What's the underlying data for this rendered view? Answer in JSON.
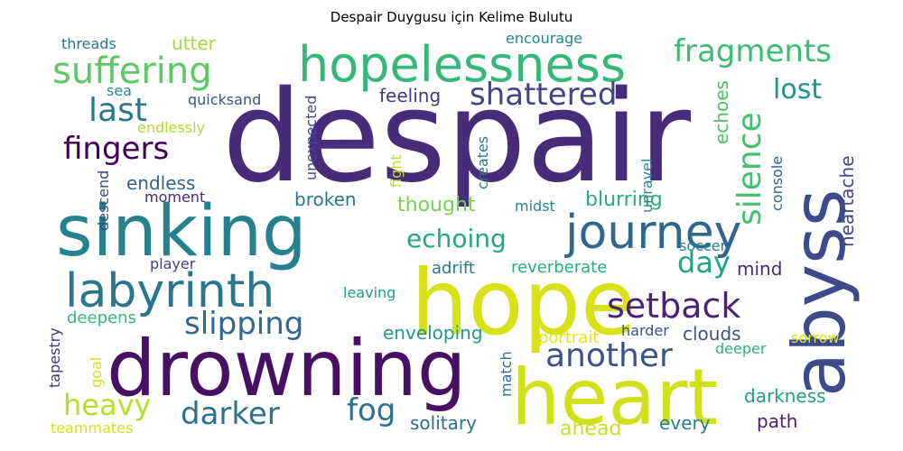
{
  "title": "Despair Duygusu için Kelime Bulutu",
  "words": [
    {
      "text": "despair",
      "color": "#472c7a"
    },
    {
      "text": "sinking",
      "color": "#26818e"
    },
    {
      "text": "hopelessness",
      "color": "#35b779"
    },
    {
      "text": "drowning",
      "color": "#471063"
    },
    {
      "text": "hope",
      "color": "#d8e219"
    },
    {
      "text": "heart",
      "color": "#d0e11c"
    },
    {
      "text": "abyss",
      "color": "#3e4a89"
    },
    {
      "text": "labyrinth",
      "color": "#2a768e"
    },
    {
      "text": "journey",
      "color": "#31668e"
    },
    {
      "text": "suffering",
      "color": "#5ec962"
    },
    {
      "text": "fragments",
      "color": "#3dbc74"
    },
    {
      "text": "shattered",
      "color": "#414487"
    },
    {
      "text": "last",
      "color": "#2a788e"
    },
    {
      "text": "fingers",
      "color": "#440154"
    },
    {
      "text": "silence",
      "color": "#44bf70"
    },
    {
      "text": "lost",
      "color": "#21918c"
    },
    {
      "text": "setback",
      "color": "#482475"
    },
    {
      "text": "another",
      "color": "#3b528b"
    },
    {
      "text": "slipping",
      "color": "#31688e"
    },
    {
      "text": "darker",
      "color": "#2c728e"
    },
    {
      "text": "echoing",
      "color": "#22a884"
    },
    {
      "text": "day",
      "color": "#20a486"
    },
    {
      "text": "heavy",
      "color": "#b5de2b"
    },
    {
      "text": "fog",
      "color": "#2d708e"
    },
    {
      "text": "clouds",
      "color": "#3b528b"
    },
    {
      "text": "darkness",
      "color": "#1f9e89"
    },
    {
      "text": "path",
      "color": "#481f70"
    },
    {
      "text": "every",
      "color": "#287d8e"
    },
    {
      "text": "ahead",
      "color": "#c8e020"
    },
    {
      "text": "solitary",
      "color": "#2e6f8e"
    },
    {
      "text": "enveloping",
      "color": "#1f9a8a"
    },
    {
      "text": "broken",
      "color": "#2a788e"
    },
    {
      "text": "thought",
      "color": "#7ad151"
    },
    {
      "text": "blurring",
      "color": "#29af7f"
    },
    {
      "text": "feeling",
      "color": "#443983"
    },
    {
      "text": "heartache",
      "color": "#3f4889"
    },
    {
      "text": "echoes",
      "color": "#4ac16d"
    },
    {
      "text": "mind",
      "color": "#482878"
    },
    {
      "text": "adrift",
      "color": "#2a788e"
    },
    {
      "text": "reverberate",
      "color": "#27ad81"
    },
    {
      "text": "deepens",
      "color": "#38b977"
    },
    {
      "text": "endless",
      "color": "#33638d"
    },
    {
      "text": "utter",
      "color": "#a0da39"
    },
    {
      "text": "threads",
      "color": "#2c728e"
    },
    {
      "text": "sea",
      "color": "#25858e"
    },
    {
      "text": "quicksand",
      "color": "#3b528b"
    },
    {
      "text": "endlessly",
      "color": "#addc30"
    },
    {
      "text": "encourage",
      "color": "#25848e"
    },
    {
      "text": "moment",
      "color": "#472a7a"
    },
    {
      "text": "descend",
      "color": "#3f4788"
    },
    {
      "text": "unexpected",
      "color": "#3e4a89"
    },
    {
      "text": "fight",
      "color": "#bddf26"
    },
    {
      "text": "creates",
      "color": "#2a788e"
    },
    {
      "text": "midst",
      "color": "#25858e"
    },
    {
      "text": "unravel",
      "color": "#24878e"
    },
    {
      "text": "console",
      "color": "#33638d"
    },
    {
      "text": "player",
      "color": "#414487"
    },
    {
      "text": "soccer",
      "color": "#26818e"
    },
    {
      "text": "leaving",
      "color": "#1fa188"
    },
    {
      "text": "tapestry",
      "color": "#46307e"
    },
    {
      "text": "goal",
      "color": "#d2e21b"
    },
    {
      "text": "portrait",
      "color": "#e5e419"
    },
    {
      "text": "harder",
      "color": "#3b528b"
    },
    {
      "text": "match",
      "color": "#2c738e"
    },
    {
      "text": "deeper",
      "color": "#2db27d"
    },
    {
      "text": "sorrow",
      "color": "#d5e21a"
    },
    {
      "text": "teammates",
      "color": "#d8e219"
    }
  ]
}
